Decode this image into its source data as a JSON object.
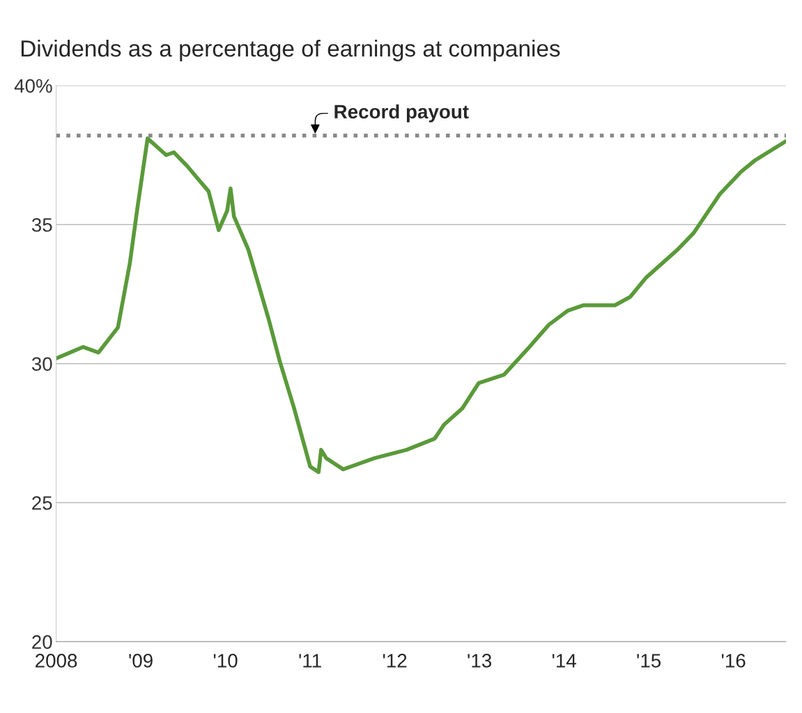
{
  "chart_data": {
    "type": "line",
    "title": "Dividends as a percentage of earnings at companies",
    "x": [
      2008.01,
      2008.32,
      2008.5,
      2008.73,
      2008.87,
      2008.96,
      2009.08,
      2009.3,
      2009.39,
      2009.55,
      2009.66,
      2009.8,
      2009.92,
      2010.02,
      2010.06,
      2010.1,
      2010.27,
      2010.51,
      2010.64,
      2010.81,
      2011.0,
      2011.1,
      2011.13,
      2011.19,
      2011.39,
      2011.76,
      2012.14,
      2012.47,
      2012.58,
      2012.8,
      2012.99,
      2013.29,
      2013.59,
      2013.82,
      2014.04,
      2014.23,
      2014.6,
      2014.78,
      2014.97,
      2015.34,
      2015.53,
      2015.84,
      2016.09,
      2016.25,
      2016.62
    ],
    "series": [
      {
        "color": "#5a9a3a",
        "values": [
          30.2,
          30.6,
          30.4,
          31.3,
          33.6,
          35.6,
          38.1,
          37.5,
          37.6,
          37.1,
          36.7,
          36.2,
          34.8,
          35.5,
          36.3,
          35.3,
          34.1,
          31.6,
          30.1,
          28.4,
          26.3,
          26.1,
          26.9,
          26.6,
          26.2,
          26.6,
          26.9,
          27.3,
          27.8,
          28.4,
          29.3,
          29.6,
          30.6,
          31.4,
          31.9,
          32.1,
          32.1,
          32.4,
          33.1,
          34.1,
          34.7,
          36.1,
          36.9,
          37.3,
          38.0
        ]
      }
    ],
    "xlim": [
      2008.0,
      2016.62
    ],
    "xticks": [
      {
        "value": 2008,
        "label": "2008"
      },
      {
        "value": 2009,
        "label": "'09"
      },
      {
        "value": 2010,
        "label": "'10"
      },
      {
        "value": 2011,
        "label": "'11"
      },
      {
        "value": 2012,
        "label": "'12"
      },
      {
        "value": 2013,
        "label": "'13"
      },
      {
        "value": 2014,
        "label": "'14"
      },
      {
        "value": 2015,
        "label": "'15"
      },
      {
        "value": 2016,
        "label": "'16"
      }
    ],
    "ylim": [
      20,
      40
    ],
    "yticks": [
      20,
      25,
      30,
      35,
      {
        "value": 40,
        "label": "40%"
      }
    ],
    "grid": "y",
    "ref_lines": [
      {
        "axis": "y",
        "value": 38.2,
        "label": "Record payout",
        "color": "#888888",
        "line_style": "dotted"
      }
    ]
  }
}
